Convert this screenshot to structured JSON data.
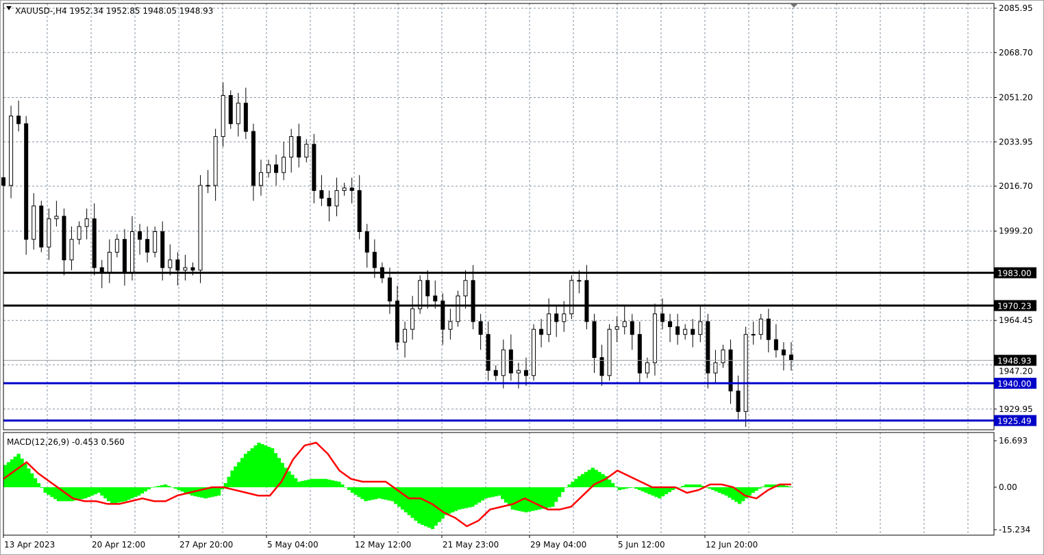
{
  "chart_data": [
    {
      "type": "candlestick",
      "title": "XAUUSD-,H4  1952.34 1952.85 1948.05 1948.93",
      "symbol": "XAUUSD-",
      "timeframe": "H4",
      "ohlc_last": {
        "open": 1952.34,
        "high": 1952.85,
        "low": 1948.05,
        "close": 1948.93
      },
      "ylim": [
        1921,
        2087
      ],
      "y_ticks": [
        "2085.95",
        "2068.70",
        "2051.20",
        "2033.95",
        "2016.70",
        "1999.20",
        "1964.45",
        "1947.20",
        "1929.95"
      ],
      "x_ticks": [
        "13 Apr 2023",
        "20 Apr 12:00",
        "27 Apr 20:00",
        "5 May 04:00",
        "12 May 12:00",
        "21 May 23:00",
        "29 May 04:00",
        "5 Jun 12:00",
        "12 Jun 20:00"
      ],
      "grid": true,
      "closes": [
        2017,
        2044,
        2041,
        1996,
        2009,
        1993,
        2004,
        2005,
        1988,
        1996,
        2001,
        2004,
        1985,
        1983,
        1991,
        1996,
        1983,
        1999,
        1996,
        1991,
        1999,
        1985,
        1988,
        1984,
        1985,
        1984,
        2017,
        2017,
        2036,
        2052,
        2041,
        2049,
        2038,
        2017,
        2022,
        2025,
        2022,
        2028,
        2036,
        2028,
        2033,
        2015,
        2012,
        2009,
        2015,
        2016,
        2015,
        1999,
        1991,
        1985,
        1981,
        1972,
        1956,
        1961,
        1969,
        1980,
        1974,
        1972,
        1961,
        1964,
        1974,
        1980,
        1964,
        1959,
        1945,
        1943,
        1953,
        1944,
        1945,
        1943,
        1961,
        1959,
        1967,
        1964,
        1967,
        1980,
        1980,
        1964,
        1950,
        1943,
        1961,
        1962,
        1964,
        1959,
        1944,
        1948,
        1967,
        1964,
        1962,
        1959,
        1961,
        1959,
        1964,
        1944,
        1948,
        1953,
        1937,
        1929,
        1959,
        1959,
        1965,
        1957,
        1953,
        1951,
        1948.93
      ],
      "horizontal_lines": [
        {
          "price": 1983.0,
          "label": "1983.00",
          "color": "#000000"
        },
        {
          "price": 1970.23,
          "label": "1970.23",
          "color": "#000000"
        },
        {
          "price": 1940.0,
          "label": "1940.00",
          "color": "#0000c8"
        },
        {
          "price": 1925.49,
          "label": "1925.49",
          "color": "#0000c8"
        }
      ],
      "current_price": {
        "price": 1948.93,
        "label": "1948.93",
        "color": "#000000"
      }
    },
    {
      "type": "bar+line",
      "title": "MACD(12,26,9) -0.453 0.560",
      "ylim": [
        -16.5,
        17.5
      ],
      "y_ticks": [
        "16.693",
        "0.00",
        "-15.234"
      ],
      "histogram_color": "#00ff00",
      "signal_color": "#ff0000",
      "histogram": [
        8,
        12,
        5,
        -2,
        -5,
        -5,
        -4,
        -2,
        -6,
        -5,
        -3,
        0,
        1,
        -1,
        -3,
        -4,
        -3,
        6,
        12,
        16,
        14,
        7,
        2,
        3,
        3,
        2,
        -2,
        -5,
        -4,
        -5,
        -9,
        -13,
        -15,
        -10,
        -8,
        -7,
        -4,
        -3,
        -8,
        -9,
        -8,
        -7,
        0,
        4,
        7,
        4,
        -1,
        0,
        -2,
        -4,
        -1,
        1,
        1,
        -1,
        -3,
        -6,
        -2,
        1,
        1,
        0
      ],
      "signal": [
        3,
        6,
        9,
        5,
        2,
        -1,
        -4,
        -5,
        -5,
        -6,
        -6,
        -5,
        -4,
        -5,
        -5,
        -3,
        -2,
        -1,
        0,
        0,
        -1,
        -2,
        -3,
        -3,
        2,
        10,
        15,
        16,
        12,
        6,
        3,
        2,
        2,
        2,
        -1,
        -4,
        -4,
        -6,
        -9,
        -11,
        -14,
        -12,
        -8,
        -7,
        -6,
        -4,
        -6,
        -8,
        -8,
        -7,
        -3,
        1,
        3,
        6,
        4,
        2,
        0,
        0,
        0,
        -2,
        -1,
        1,
        1,
        0,
        -3,
        -4,
        -1,
        1,
        1
      ]
    }
  ]
}
